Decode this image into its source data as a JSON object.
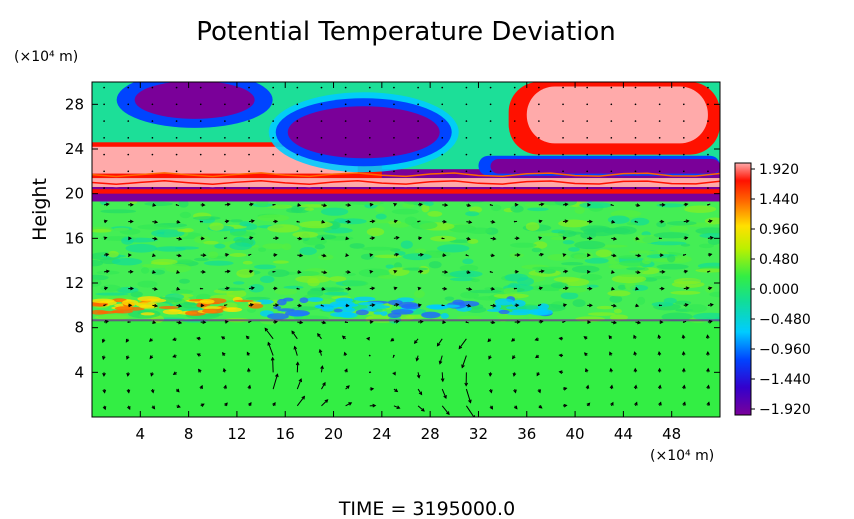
{
  "chart_data": {
    "type": "heatmap",
    "title": "Potential Temperature Deviation",
    "xlabel": "",
    "ylabel": "Height",
    "x_unit": "(×10⁴ m)",
    "y_unit": "(×10⁴ m)",
    "xlim": [
      0,
      52
    ],
    "ylim": [
      0,
      30
    ],
    "x_ticks": [
      4,
      8,
      12,
      16,
      20,
      24,
      28,
      32,
      36,
      40,
      44,
      48
    ],
    "y_ticks": [
      4,
      8,
      12,
      16,
      20,
      24,
      28
    ],
    "colorbar": {
      "ticks": [
        "1.920",
        "1.440",
        "0.960",
        "0.480",
        "0.000",
        "−0.480",
        "−0.960",
        "−1.440",
        "−1.920"
      ],
      "range": [
        -1.92,
        1.92
      ]
    },
    "overlay": "velocity vectors (arrows)",
    "footer": "TIME = 3195000.0"
  }
}
